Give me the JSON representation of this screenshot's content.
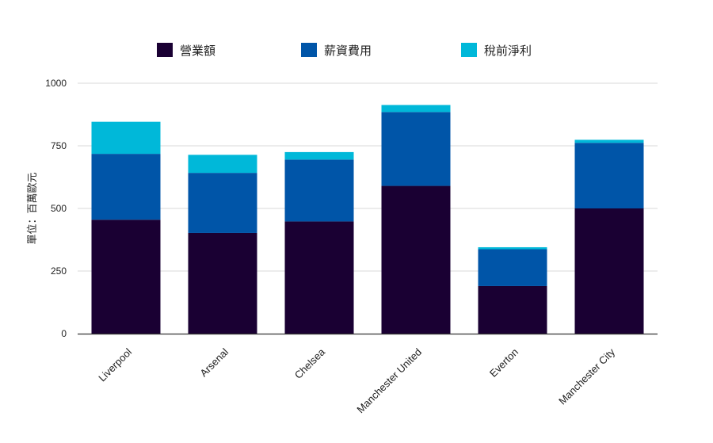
{
  "chart_data": {
    "type": "bar",
    "stacked": true,
    "categories": [
      "Liverpool",
      "Arsenal",
      "Chelsea",
      "Manchester United",
      "Everton",
      "Manchester City"
    ],
    "series": [
      {
        "name": "營業額",
        "color": "#1a0033",
        "values": [
          455,
          402,
          448,
          590,
          190,
          500
        ]
      },
      {
        "name": "薪資費用",
        "color": "#0055a8",
        "values": [
          263,
          240,
          247,
          295,
          147,
          262
        ]
      },
      {
        "name": "稅前淨利",
        "color": "#00b8d9",
        "values": [
          128,
          72,
          30,
          28,
          8,
          12
        ]
      }
    ],
    "title": "",
    "xlabel": "",
    "ylabel": "單位：百萬歐元",
    "ylim": [
      0,
      1000
    ],
    "yticks": [
      "0",
      "250",
      "500",
      "750",
      "1000"
    ],
    "ytick_values": [
      0,
      250,
      500,
      750,
      1000
    ],
    "grid": true,
    "legend_position": "top"
  }
}
